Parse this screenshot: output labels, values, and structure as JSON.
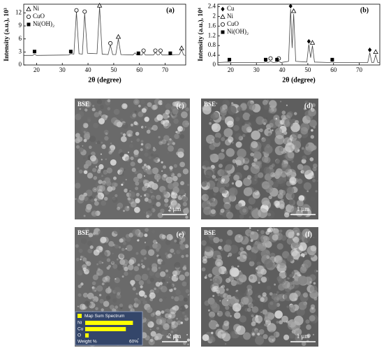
{
  "chart_data": [
    {
      "type": "line",
      "title": "(a)",
      "xlabel": "2θ (degree)",
      "ylabel": "Intensity (a.u.), 10³",
      "x": [
        15,
        18.5,
        19.2,
        20,
        32.5,
        33.3,
        34.5,
        35.5,
        36.5,
        37.8,
        38.7,
        39.8,
        43.5,
        44.5,
        45.5,
        47.8,
        48.7,
        49.6,
        50.8,
        51.8,
        52.8,
        57.5,
        58.3,
        59,
        61,
        61.6,
        62.3,
        65.5,
        66.2,
        67,
        67.8,
        68.2,
        68.8,
        72,
        74,
        75.5,
        76.4,
        77.2,
        78
      ],
      "values": [
        2.2,
        2.2,
        2.5,
        2.2,
        2.3,
        2.6,
        2.5,
        12.2,
        2.6,
        2.5,
        11.9,
        2.7,
        2.6,
        13.5,
        2.5,
        2.4,
        4.6,
        2.4,
        2.4,
        6.0,
        2.4,
        2.3,
        2.8,
        2.3,
        2.3,
        2.9,
        2.3,
        2.3,
        2.9,
        2.3,
        2.4,
        2.9,
        2.3,
        2.3,
        2.4,
        2.4,
        3.5,
        2.3,
        2.2
      ],
      "color": "#444444",
      "xlim": [
        15,
        78
      ],
      "ylim": [
        0,
        14
      ],
      "xticks": [
        20,
        30,
        40,
        50,
        60,
        70
      ],
      "yticks": [
        0,
        3,
        6,
        9,
        12
      ],
      "legend": "upper left",
      "markers": [
        {
          "name": "Ni",
          "symbol": "triangle",
          "x": [
            44.5,
            51.8,
            76.4
          ],
          "y": [
            13.7,
            6.5,
            3.9
          ]
        },
        {
          "name": "CuO",
          "symbol": "circle",
          "x": [
            35.5,
            38.7,
            48.7,
            61.6,
            66.2,
            68.2
          ],
          "y": [
            12.6,
            12.3,
            5.0,
            3.3,
            3.3,
            3.3
          ]
        },
        {
          "name": "Ni(OH)₂",
          "symbol": "square",
          "x": [
            19.2,
            33.3,
            59.6,
            72
          ],
          "y": [
            3.1,
            3.1,
            2.7,
            2.7
          ]
        }
      ]
    },
    {
      "type": "line",
      "title": "(b)",
      "xlabel": "2θ (degree)",
      "ylabel": "Intensity (a.u.), 10⁴",
      "x": [
        15,
        19,
        20,
        33,
        33.6,
        34.5,
        35.5,
        36.5,
        38,
        38.7,
        39.5,
        42.5,
        43.3,
        43.9,
        44.5,
        45.3,
        49.6,
        50.4,
        51.1,
        51.8,
        52.6,
        58.5,
        59.5,
        60.5,
        73.3,
        74.1,
        74.9,
        75.6,
        76.4,
        77.2,
        78
      ],
      "values": [
        0.1,
        0.12,
        0.1,
        0.1,
        0.13,
        0.1,
        0.15,
        0.1,
        0.12,
        0.15,
        0.1,
        0.15,
        2.3,
        0.7,
        2.1,
        0.15,
        0.12,
        0.85,
        0.3,
        0.8,
        0.12,
        0.1,
        0.12,
        0.1,
        0.1,
        0.5,
        0.1,
        0.1,
        0.42,
        0.1,
        0.1
      ],
      "color": "#444444",
      "xlim": [
        15,
        78
      ],
      "ylim": [
        0,
        2.5
      ],
      "xticks": [
        20,
        30,
        40,
        50,
        60,
        70
      ],
      "yticks": [
        0,
        0.4,
        0.8,
        1.2,
        1.6,
        2,
        2.4
      ],
      "legend": "upper left",
      "markers": [
        {
          "name": "Cu",
          "symbol": "diamond",
          "x": [
            43.3,
            50.4,
            74.1
          ],
          "y": [
            2.42,
            0.97,
            0.62
          ]
        },
        {
          "name": "Ni",
          "symbol": "triangle",
          "x": [
            44.5,
            51.8,
            76.4
          ],
          "y": [
            2.22,
            0.92,
            0.54
          ]
        },
        {
          "name": "CuO",
          "symbol": "circle",
          "x": [
            35.5,
            38.7
          ],
          "y": [
            0.27,
            0.27
          ]
        },
        {
          "name": "Ni(OH)₂",
          "symbol": "square",
          "x": [
            19.5,
            33.6,
            38,
            59.5
          ],
          "y": [
            0.22,
            0.22,
            0.22,
            0.22
          ]
        }
      ]
    }
  ],
  "images": [
    {
      "detector": "BSE",
      "label": "(c)",
      "scale_bar": "2 μm"
    },
    {
      "detector": "BSE",
      "label": "(d)",
      "scale_bar": "1 μm"
    },
    {
      "detector": "BSE",
      "label": "(e)",
      "scale_bar": "2 μm"
    },
    {
      "detector": "BSE",
      "label": "(f)",
      "scale_bar": "1 μm"
    }
  ],
  "eds": {
    "title": "Map Sum Spectrum",
    "categories": [
      "Ni",
      "Cu",
      "O"
    ],
    "values": [
      54,
      46,
      4
    ],
    "xlabel": "Weight %",
    "xlim": [
      0,
      60
    ],
    "xticks": [
      {
        "value": 60,
        "label": "60%"
      }
    ]
  }
}
